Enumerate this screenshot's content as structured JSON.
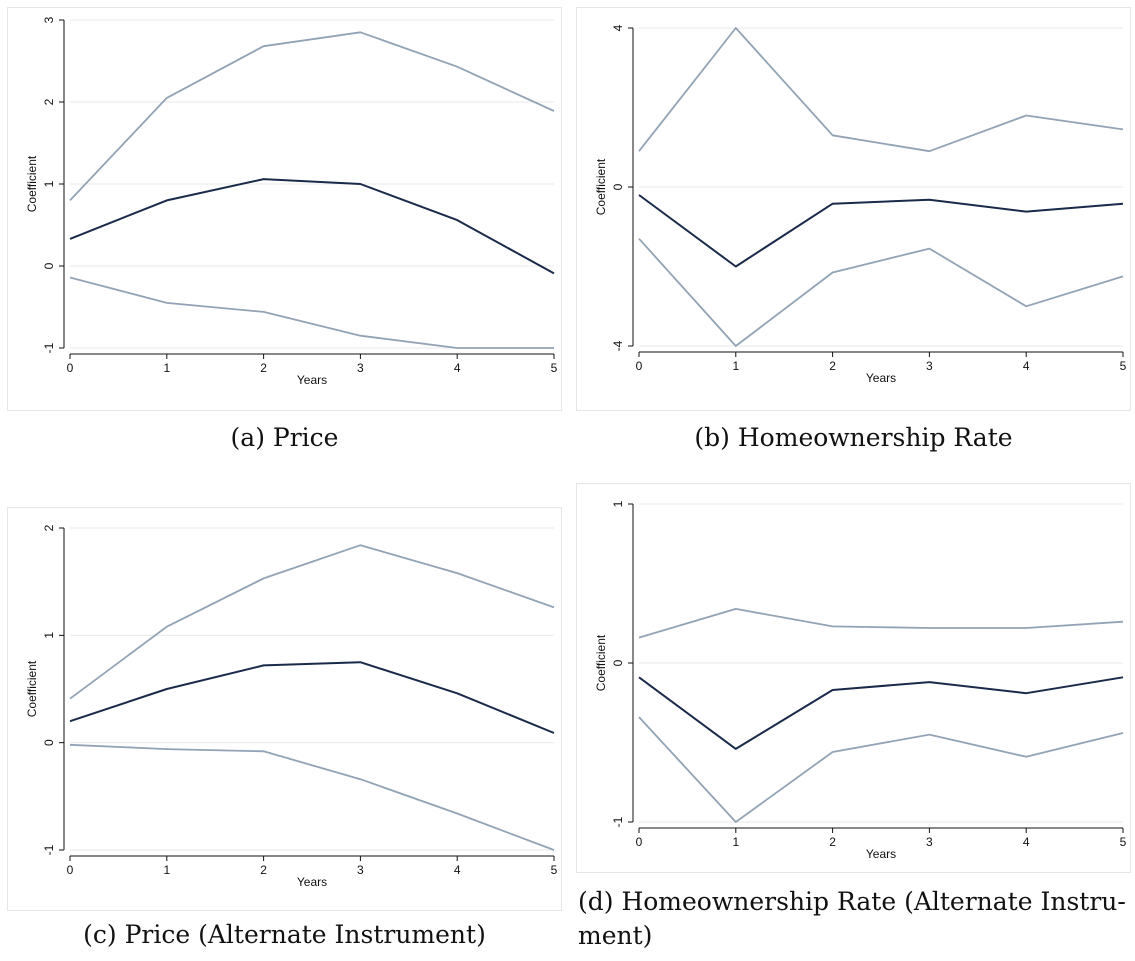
{
  "colors": {
    "estimate": "#1a2a4a",
    "band": "#91a3b5",
    "grid": "#eaeaea",
    "axis": "#111111"
  },
  "charts": [
    {
      "id": "a",
      "caption": "(a) Price",
      "chart_data": {
        "type": "line",
        "xlabel": "Years",
        "ylabel": "Coefficient",
        "x": [
          0,
          1,
          2,
          3,
          4,
          5
        ],
        "xticks": [
          "0",
          "1",
          "2",
          "3",
          "4",
          "5"
        ],
        "yticks": [
          -1,
          0,
          1,
          2,
          3
        ],
        "ytick_labels": [
          "-1",
          "0",
          "1",
          "2",
          "3"
        ],
        "ylim": [
          -1,
          3
        ],
        "grid": true,
        "series": [
          {
            "role": "upper",
            "values": [
              0.8,
              2.05,
              2.68,
              2.85,
              2.43,
              1.89
            ]
          },
          {
            "role": "estimate",
            "values": [
              0.33,
              0.8,
              1.06,
              1.0,
              0.56,
              -0.09
            ]
          },
          {
            "role": "lower",
            "values": [
              -0.14,
              -0.45,
              -0.56,
              -0.85,
              -1.0,
              -1.0
            ]
          }
        ]
      }
    },
    {
      "id": "b",
      "caption": "(b) Homeownership Rate",
      "chart_data": {
        "type": "line",
        "xlabel": "Years",
        "ylabel": "Coefficient",
        "x": [
          0,
          1,
          2,
          3,
          4,
          5
        ],
        "xticks": [
          "0",
          "1",
          "2",
          "3",
          "4",
          "5"
        ],
        "yticks": [
          -4,
          0,
          4
        ],
        "ytick_labels": [
          "-4",
          "0",
          "4"
        ],
        "ylim": [
          -4,
          4
        ],
        "grid": true,
        "series": [
          {
            "role": "upper",
            "values": [
              0.9,
              4.0,
              1.3,
              0.9,
              1.8,
              1.45
            ]
          },
          {
            "role": "estimate",
            "values": [
              -0.2,
              -2.0,
              -0.42,
              -0.32,
              -0.62,
              -0.42
            ]
          },
          {
            "role": "lower",
            "values": [
              -1.3,
              -4.0,
              -2.15,
              -1.55,
              -3.0,
              -2.25
            ]
          }
        ]
      }
    },
    {
      "id": "c",
      "caption": "(c) Price (Alternate Instrument)",
      "chart_data": {
        "type": "line",
        "xlabel": "Years",
        "ylabel": "Coefficient",
        "x": [
          0,
          1,
          2,
          3,
          4,
          5
        ],
        "xticks": [
          "0",
          "1",
          "2",
          "3",
          "4",
          "5"
        ],
        "yticks": [
          -1,
          0,
          1,
          2
        ],
        "ytick_labels": [
          "-1",
          "0",
          "1",
          "2"
        ],
        "ylim": [
          -1,
          2
        ],
        "grid": true,
        "series": [
          {
            "role": "upper",
            "values": [
              0.41,
              1.08,
              1.53,
              1.84,
              1.58,
              1.26
            ]
          },
          {
            "role": "estimate",
            "values": [
              0.2,
              0.5,
              0.72,
              0.75,
              0.46,
              0.09
            ]
          },
          {
            "role": "lower",
            "values": [
              -0.02,
              -0.06,
              -0.08,
              -0.34,
              -0.66,
              -1.0
            ]
          }
        ]
      }
    },
    {
      "id": "d",
      "caption": "(d) Homeownership Rate (Alternate Instru-\nment)",
      "chart_data": {
        "type": "line",
        "xlabel": "Years",
        "ylabel": "Coefficient",
        "x": [
          0,
          1,
          2,
          3,
          4,
          5
        ],
        "xticks": [
          "0",
          "1",
          "2",
          "3",
          "4",
          "5"
        ],
        "yticks": [
          -1,
          0,
          1
        ],
        "ytick_labels": [
          "-1",
          "0",
          "1"
        ],
        "ylim": [
          -1,
          1
        ],
        "grid": true,
        "series": [
          {
            "role": "upper",
            "values": [
              0.16,
              0.34,
              0.23,
              0.22,
              0.22,
              0.26
            ]
          },
          {
            "role": "estimate",
            "values": [
              -0.09,
              -0.54,
              -0.17,
              -0.12,
              -0.19,
              -0.09
            ]
          },
          {
            "role": "lower",
            "values": [
              -0.34,
              -1.0,
              -0.56,
              -0.45,
              -0.59,
              -0.44
            ]
          }
        ]
      }
    }
  ]
}
